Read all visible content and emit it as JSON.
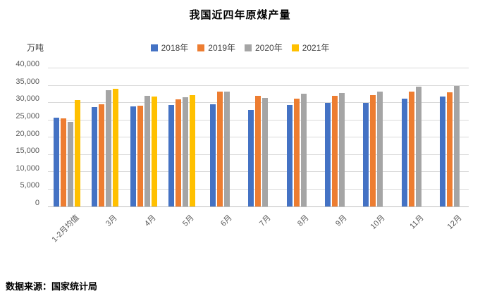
{
  "title": "我国近四年原煤产量",
  "y_axis_unit": "万吨",
  "source": "数据来源：国家统计局",
  "colors": {
    "series_2018": "#4472C4",
    "series_2019": "#ED7D31",
    "series_2020": "#A5A5A5",
    "series_2021": "#FFC000",
    "gridline": "#D9D9D9",
    "axis_line": "#BFBFBF",
    "tick_label": "#595959",
    "legend_label": "#404040"
  },
  "chart_data": {
    "type": "bar",
    "title": "我国近四年原煤产量",
    "xlabel": "",
    "ylabel": "万吨",
    "ylim": [
      0,
      40000
    ],
    "ytick_step": 5000,
    "grid": true,
    "legend_position": "top",
    "categories": [
      "1-2月均值",
      "3月",
      "4月",
      "5月",
      "6月",
      "7月",
      "8月",
      "9月",
      "10月",
      "11月",
      "12月"
    ],
    "series": [
      {
        "name": "2018年",
        "color": "#4472C4",
        "values": [
          25800,
          28800,
          29000,
          29400,
          29500,
          27900,
          29400,
          30100,
          30000,
          31200,
          31800
        ]
      },
      {
        "name": "2019年",
        "color": "#ED7D31",
        "values": [
          25600,
          29500,
          29100,
          31100,
          33300,
          32000,
          31300,
          32100,
          32200,
          33200,
          33000
        ]
      },
      {
        "name": "2020年",
        "color": "#A5A5A5",
        "values": [
          24400,
          33600,
          32000,
          31600,
          33200,
          31500,
          32600,
          32900,
          33300,
          34700,
          35000
        ]
      },
      {
        "name": "2021年",
        "color": "#FFC000",
        "values": [
          30900,
          34000,
          31800,
          32300,
          null,
          null,
          null,
          null,
          null,
          null,
          null
        ]
      }
    ]
  }
}
